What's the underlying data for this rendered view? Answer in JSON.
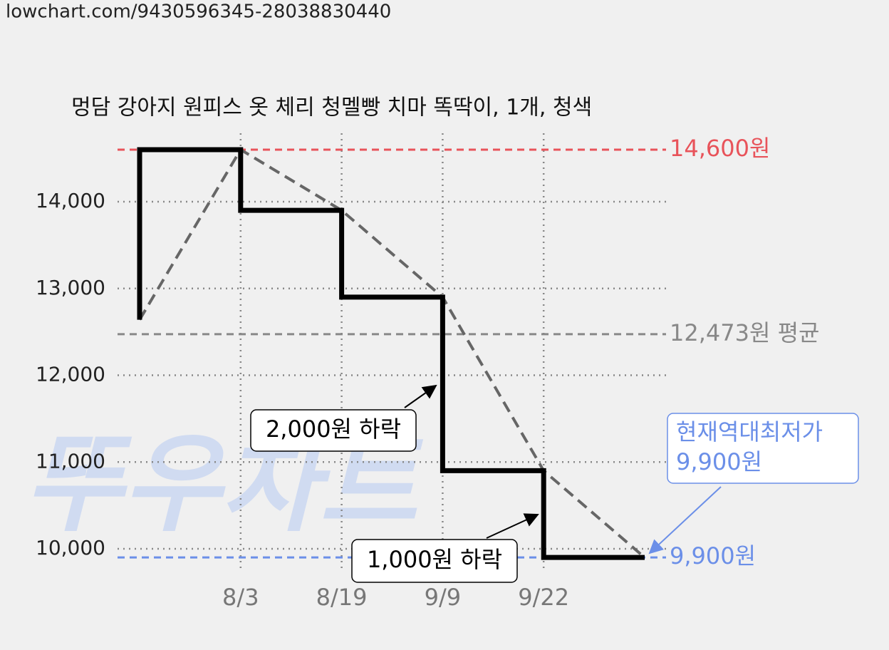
{
  "url": "lowchart.com/9430596345-28038830440",
  "watermark": "뚜우차트",
  "chart_data": {
    "type": "line",
    "title": "멍담 강아지 원피스 옷 체리 청멜빵 치마 똑딱이, 1개, 청색",
    "categories": [
      null,
      "8/3",
      "8/19",
      "9/9",
      "9/22",
      null
    ],
    "series": [
      {
        "color": "#000000",
        "trend_color": "#666666",
        "values": [
          12640,
          14600,
          13900,
          12900,
          10900,
          9900
        ]
      }
    ],
    "step": "pre",
    "ylim": [
      9600,
      15400
    ],
    "yticks": [
      {
        "value": 10000,
        "label": "10,000"
      },
      {
        "value": 11000,
        "label": "11,000"
      },
      {
        "value": 12000,
        "label": "12,000"
      },
      {
        "value": 13000,
        "label": "13,000"
      },
      {
        "value": 14000,
        "label": "14,000"
      }
    ],
    "grid": true,
    "ref_lines": [
      {
        "value": 14600,
        "label": "14,600원",
        "color": "#e8535a"
      },
      {
        "value": 12473,
        "label": "12,473원 평균",
        "color": "#888888"
      },
      {
        "value": 9900,
        "label": "9,900원",
        "color": "#6b8fe8"
      }
    ],
    "annotations": [
      {
        "text": [
          "2,000원 하락"
        ],
        "color": "#000000"
      },
      {
        "text": [
          "1,000원 하락"
        ],
        "color": "#000000"
      },
      {
        "text": [
          "현재역대최저가",
          "9,900원"
        ],
        "color": "#6b8fe8"
      }
    ]
  }
}
